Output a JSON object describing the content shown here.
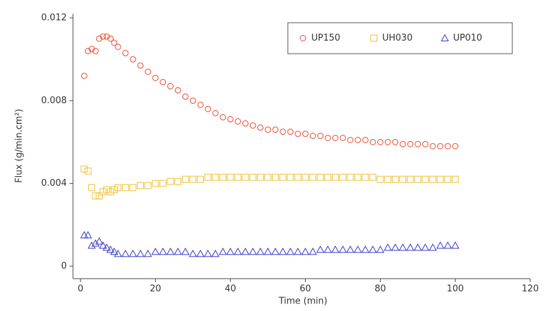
{
  "chart_data": {
    "type": "scatter",
    "x_label": "Time (min)",
    "y_label": "Flux (g/min.cm²)",
    "x": [
      1,
      2,
      3,
      4,
      5,
      6,
      7,
      8,
      9,
      10,
      12,
      14,
      16,
      18,
      20,
      22,
      24,
      26,
      28,
      30,
      32,
      34,
      36,
      38,
      40,
      42,
      44,
      46,
      48,
      50,
      52,
      54,
      56,
      58,
      60,
      62,
      64,
      66,
      68,
      70,
      72,
      74,
      76,
      78,
      80,
      82,
      84,
      86,
      88,
      90,
      92,
      94,
      96,
      98,
      100
    ],
    "series": [
      {
        "name": "UP150",
        "color": "#e8472a",
        "marker": "circle",
        "values": [
          0.0092,
          0.0104,
          0.0105,
          0.0104,
          0.011,
          0.0111,
          0.0111,
          0.011,
          0.0108,
          0.0106,
          0.0103,
          0.01,
          0.0097,
          0.0094,
          0.0091,
          0.0089,
          0.0087,
          0.0085,
          0.0082,
          0.008,
          0.0078,
          0.0076,
          0.0074,
          0.0072,
          0.0071,
          0.007,
          0.0069,
          0.0068,
          0.0067,
          0.0066,
          0.0066,
          0.0065,
          0.0065,
          0.0064,
          0.0064,
          0.0063,
          0.0063,
          0.0062,
          0.0062,
          0.0062,
          0.0061,
          0.0061,
          0.0061,
          0.006,
          0.006,
          0.006,
          0.006,
          0.0059,
          0.0059,
          0.0059,
          0.0059,
          0.0058,
          0.0058,
          0.0058,
          0.0058
        ]
      },
      {
        "name": "UH030",
        "color": "#f0be2c",
        "marker": "square",
        "values": [
          0.0047,
          0.0046,
          0.0038,
          0.0034,
          0.0034,
          0.0036,
          0.0037,
          0.0036,
          0.0037,
          0.0038,
          0.0038,
          0.0038,
          0.0039,
          0.0039,
          0.004,
          0.004,
          0.0041,
          0.0041,
          0.0042,
          0.0042,
          0.0042,
          0.0043,
          0.0043,
          0.0043,
          0.0043,
          0.0043,
          0.0043,
          0.0043,
          0.0043,
          0.0043,
          0.0043,
          0.0043,
          0.0043,
          0.0043,
          0.0043,
          0.0043,
          0.0043,
          0.0043,
          0.0043,
          0.0043,
          0.0043,
          0.0043,
          0.0043,
          0.0043,
          0.0042,
          0.0042,
          0.0042,
          0.0042,
          0.0042,
          0.0042,
          0.0042,
          0.0042,
          0.0042,
          0.0042,
          0.0042
        ]
      },
      {
        "name": "UP010",
        "color": "#3535c8",
        "marker": "triangle",
        "values": [
          0.0015,
          0.0015,
          0.001,
          0.0011,
          0.0012,
          0.001,
          0.0009,
          0.0008,
          0.0007,
          0.0006,
          0.0006,
          0.0006,
          0.0006,
          0.0006,
          0.0007,
          0.0007,
          0.0007,
          0.0007,
          0.0007,
          0.0006,
          0.0006,
          0.0006,
          0.0006,
          0.0007,
          0.0007,
          0.0007,
          0.0007,
          0.0007,
          0.0007,
          0.0007,
          0.0007,
          0.0007,
          0.0007,
          0.0007,
          0.0007,
          0.0007,
          0.0008,
          0.0008,
          0.0008,
          0.0008,
          0.0008,
          0.0008,
          0.0008,
          0.0008,
          0.0008,
          0.0009,
          0.0009,
          0.0009,
          0.0009,
          0.0009,
          0.0009,
          0.0009,
          0.001,
          0.001,
          0.001
        ]
      }
    ],
    "xlim": [
      -2,
      120
    ],
    "xticks": [
      0,
      20,
      40,
      60,
      80,
      100,
      120
    ],
    "ylim": [
      -0.0006,
      0.0122
    ],
    "yticks": [
      0,
      0.004,
      0.008,
      0.012
    ],
    "legend": "top-right"
  }
}
